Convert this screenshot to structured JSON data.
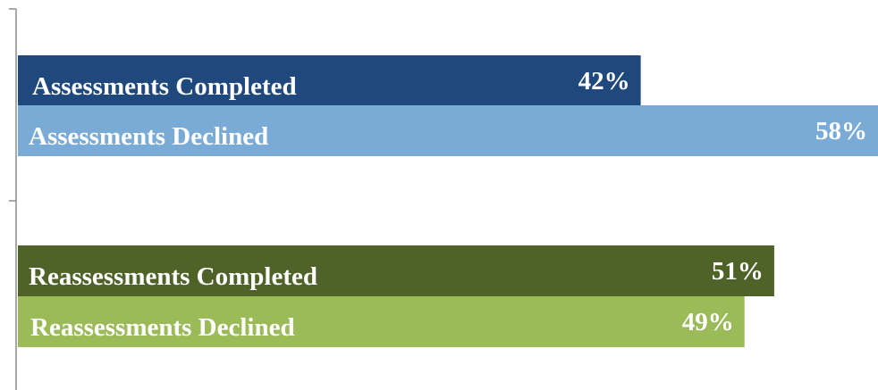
{
  "chart_data": {
    "type": "bar",
    "orientation": "horizontal",
    "categories": [
      "Assessments Completed",
      "Assessments Declined",
      "Reassessments Completed",
      "Reassessments Declined"
    ],
    "values": [
      42,
      58,
      51,
      49
    ],
    "value_labels": [
      "42%",
      "58%",
      "51%",
      "49%"
    ],
    "colors": [
      "#1f497d",
      "#7aabd6",
      "#4f6228",
      "#9bbb59"
    ],
    "xlim": [
      0,
      58
    ]
  }
}
